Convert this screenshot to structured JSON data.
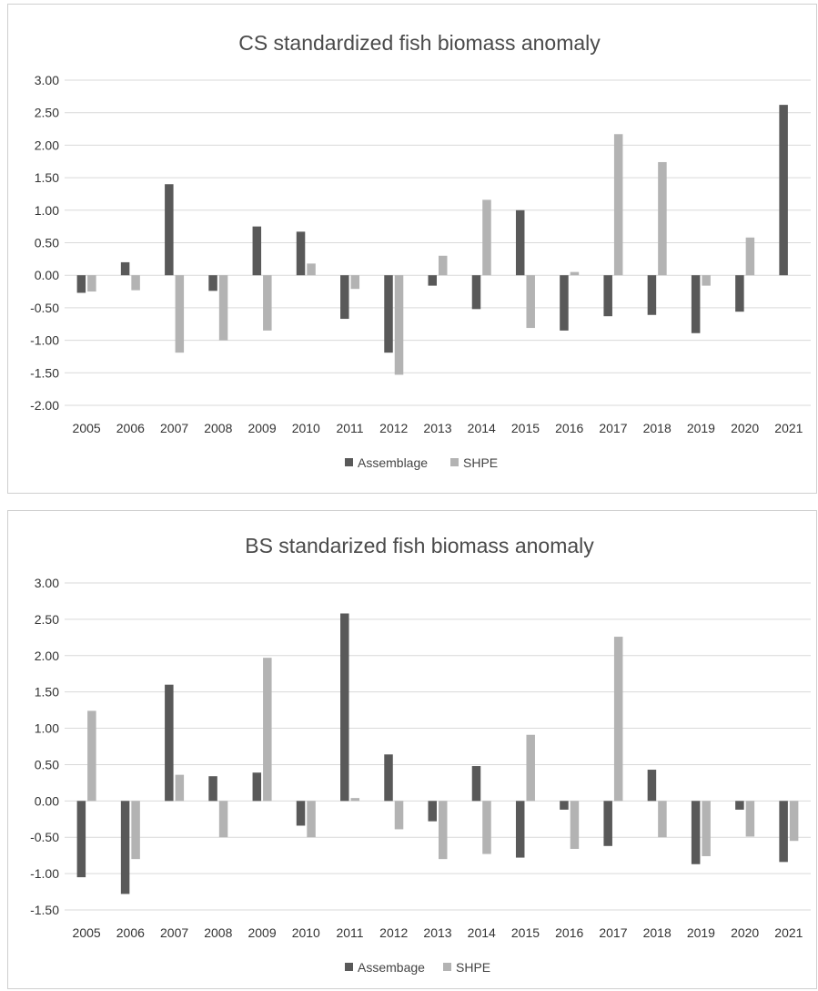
{
  "chart_data": [
    {
      "type": "bar",
      "title": "CS standardized fish biomass anomaly",
      "xlabel": "",
      "ylabel": "",
      "ylim": [
        -2.0,
        3.0
      ],
      "yticks": [
        "3.00",
        "2.50",
        "2.00",
        "1.50",
        "1.00",
        "0.50",
        "0.00",
        "-0.50",
        "-1.00",
        "-1.50",
        "-2.00"
      ],
      "categories": [
        "2005",
        "2006",
        "2007",
        "2008",
        "2009",
        "2010",
        "2011",
        "2012",
        "2013",
        "2014",
        "2015",
        "2016",
        "2017",
        "2018",
        "2019",
        "2020",
        "2021"
      ],
      "series": [
        {
          "name": "Assemblage",
          "color": "#595959",
          "values": [
            -0.27,
            0.2,
            1.4,
            -0.24,
            0.75,
            0.67,
            -0.67,
            -1.19,
            -0.16,
            -0.52,
            1.0,
            -0.85,
            -0.63,
            -0.61,
            -0.89,
            -0.56,
            2.62
          ]
        },
        {
          "name": "SHPE",
          "color": "#b3b3b3",
          "values": [
            -0.25,
            -0.23,
            -1.19,
            -1.0,
            -0.85,
            0.18,
            -0.21,
            -1.53,
            0.3,
            1.16,
            -0.81,
            0.05,
            2.17,
            1.74,
            -0.16,
            0.58,
            0.0
          ]
        }
      ],
      "legend": "bottom",
      "grid": true
    },
    {
      "type": "bar",
      "title": "BS standarized fish biomass anomaly",
      "xlabel": "",
      "ylabel": "",
      "ylim": [
        -1.5,
        3.0
      ],
      "yticks": [
        "3.00",
        "2.50",
        "2.00",
        "1.50",
        "1.00",
        "0.50",
        "0.00",
        "-0.50",
        "-1.00",
        "-1.50"
      ],
      "categories": [
        "2005",
        "2006",
        "2007",
        "2008",
        "2009",
        "2010",
        "2011",
        "2012",
        "2013",
        "2014",
        "2015",
        "2016",
        "2017",
        "2018",
        "2019",
        "2020",
        "2021"
      ],
      "series": [
        {
          "name": "Assembage",
          "color": "#595959",
          "values": [
            -1.05,
            -1.28,
            1.6,
            0.34,
            0.39,
            -0.34,
            2.58,
            0.64,
            -0.28,
            0.48,
            -0.78,
            -0.12,
            -0.62,
            0.43,
            -0.87,
            -0.12,
            -0.84
          ]
        },
        {
          "name": "SHPE",
          "color": "#b3b3b3",
          "values": [
            1.24,
            -0.8,
            0.36,
            -0.5,
            1.97,
            -0.5,
            0.04,
            -0.39,
            -0.8,
            -0.73,
            0.91,
            -0.66,
            2.26,
            -0.5,
            -0.76,
            -0.49,
            -0.55
          ]
        }
      ],
      "legend": "bottom",
      "grid": true
    }
  ]
}
